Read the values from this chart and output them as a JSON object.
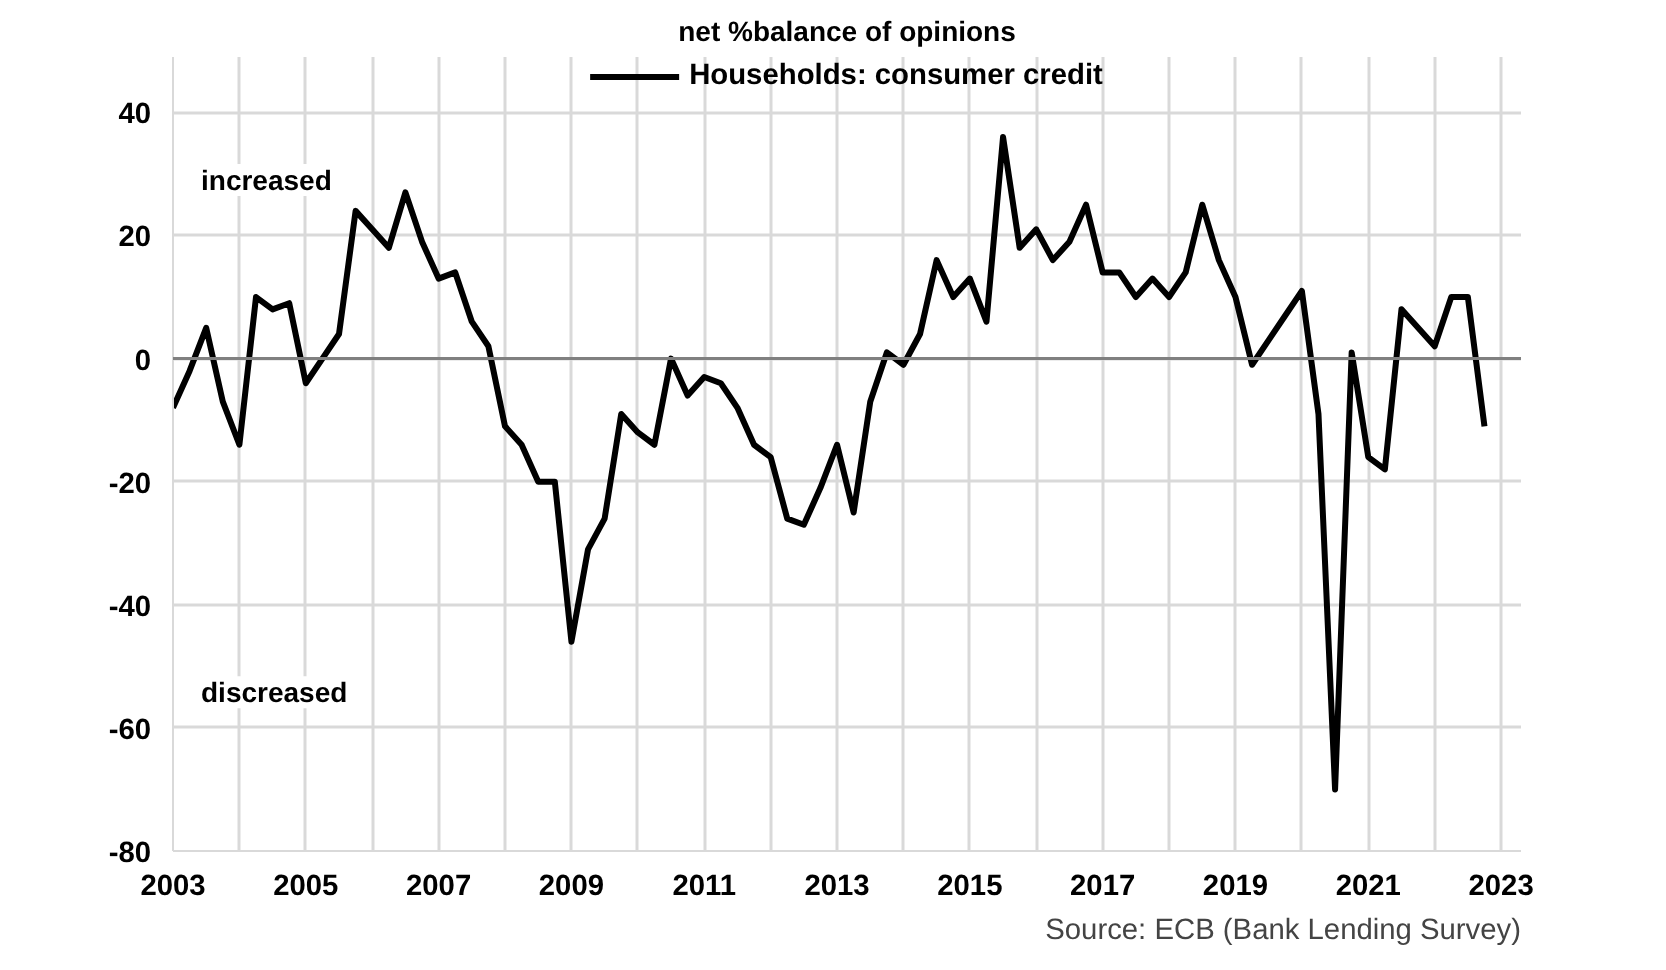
{
  "chart_data": {
    "type": "line",
    "title": "net %balance of opinions",
    "x": [
      2003.0,
      2003.25,
      2003.5,
      2003.75,
      2004.0,
      2004.25,
      2004.5,
      2004.75,
      2005.0,
      2005.25,
      2005.5,
      2005.75,
      2006.0,
      2006.25,
      2006.5,
      2006.75,
      2007.0,
      2007.25,
      2007.5,
      2007.75,
      2008.0,
      2008.25,
      2008.5,
      2008.75,
      2009.0,
      2009.25,
      2009.5,
      2009.75,
      2010.0,
      2010.25,
      2010.5,
      2010.75,
      2011.0,
      2011.25,
      2011.5,
      2011.75,
      2012.0,
      2012.25,
      2012.5,
      2012.75,
      2013.0,
      2013.25,
      2013.5,
      2013.75,
      2014.0,
      2014.25,
      2014.5,
      2014.75,
      2015.0,
      2015.25,
      2015.5,
      2015.75,
      2016.0,
      2016.25,
      2016.5,
      2016.75,
      2017.0,
      2017.25,
      2017.5,
      2017.75,
      2018.0,
      2018.25,
      2018.5,
      2018.75,
      2019.0,
      2019.25,
      2019.5,
      2019.75,
      2020.0,
      2020.25,
      2020.5,
      2020.75,
      2021.0,
      2021.25,
      2021.5,
      2021.75,
      2022.0,
      2022.25,
      2022.5,
      2022.75
    ],
    "series": [
      {
        "name": "Households: consumer credit",
        "color": "#000000",
        "values": [
          -8,
          -2,
          5,
          -7,
          -14,
          10,
          8,
          9,
          -4,
          0,
          4,
          24,
          21,
          18,
          27,
          19,
          13,
          14,
          6,
          2,
          -11,
          -14,
          -20,
          -20,
          -46,
          -31,
          -26,
          -9,
          -12,
          -14,
          0,
          -6,
          -3,
          -4,
          -8,
          -14,
          -16,
          -26,
          -27,
          -21,
          -14,
          -25,
          -7,
          1,
          -1,
          4,
          16,
          10,
          13,
          6,
          36,
          18,
          21,
          16,
          19,
          25,
          14,
          14,
          10,
          13,
          10,
          14,
          25,
          16,
          10,
          -1,
          3,
          7,
          11,
          -9,
          -70,
          1,
          -16,
          -18,
          8,
          5,
          2,
          10,
          10,
          -11
        ]
      }
    ],
    "xlim": [
      2003,
      2023.3
    ],
    "xticks": [
      2003,
      {
        "value": 2004,
        "label": null
      },
      2005,
      {
        "value": 2006,
        "label": null
      },
      2007,
      {
        "value": 2008,
        "label": null
      },
      2009,
      {
        "value": 2010,
        "label": null
      },
      2011,
      {
        "value": 2012,
        "label": null
      },
      2013,
      {
        "value": 2014,
        "label": null
      },
      2015,
      {
        "value": 2016,
        "label": null
      },
      2017,
      {
        "value": 2018,
        "label": null
      },
      2019,
      {
        "value": 2020,
        "label": null
      },
      2021,
      {
        "value": 2022,
        "label": null
      },
      2023
    ],
    "ylim": [
      -80,
      49
    ],
    "yticks": [
      -80,
      -60,
      -40,
      -20,
      0,
      20,
      40
    ],
    "grid": true,
    "legend": "top",
    "marker": "none",
    "line_style": "solid",
    "ref_lines": [
      {
        "axis": "y",
        "value": 0,
        "color": "#808080"
      }
    ],
    "annotations": [
      "increased",
      "discreased",
      "Source: ECB (Bank Lending Survey)"
    ]
  }
}
